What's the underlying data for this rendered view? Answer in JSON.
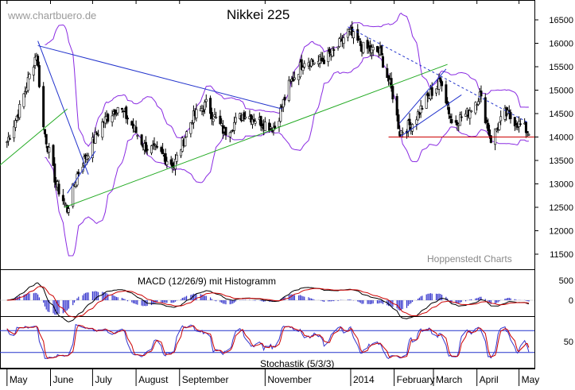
{
  "watermark": "www.chartbuero.de",
  "source_label": "Hoppenstedt Charts",
  "chart_data": [
    {
      "type": "candlestick",
      "title": "Nikkei 225",
      "ylim": [
        11300,
        16750
      ],
      "y_ticks": [
        11500,
        12000,
        12500,
        13000,
        13500,
        14000,
        14500,
        15000,
        15500,
        16000,
        16500
      ],
      "x_ticks": [
        "May",
        "June",
        "July",
        "August",
        "September",
        "November",
        "2014",
        "February",
        "March",
        "April",
        "May"
      ],
      "grid": false,
      "close_points": [
        {
          "date": "2013-05-01",
          "value": 13900
        },
        {
          "date": "2013-05-10",
          "value": 14600
        },
        {
          "date": "2013-05-22",
          "value": 15800
        },
        {
          "date": "2013-05-27",
          "value": 14200
        },
        {
          "date": "2013-06-05",
          "value": 13000
        },
        {
          "date": "2013-06-13",
          "value": 12450
        },
        {
          "date": "2013-06-20",
          "value": 13200
        },
        {
          "date": "2013-06-28",
          "value": 13700
        },
        {
          "date": "2013-07-08",
          "value": 14300
        },
        {
          "date": "2013-07-19",
          "value": 14650
        },
        {
          "date": "2013-07-26",
          "value": 14400
        },
        {
          "date": "2013-08-07",
          "value": 13800
        },
        {
          "date": "2013-08-16",
          "value": 13700
        },
        {
          "date": "2013-08-28",
          "value": 13400
        },
        {
          "date": "2013-09-10",
          "value": 14400
        },
        {
          "date": "2013-09-20",
          "value": 14700
        },
        {
          "date": "2013-10-03",
          "value": 14100
        },
        {
          "date": "2013-10-17",
          "value": 14500
        },
        {
          "date": "2013-10-31",
          "value": 14300
        },
        {
          "date": "2013-11-08",
          "value": 14200
        },
        {
          "date": "2013-11-18",
          "value": 15100
        },
        {
          "date": "2013-11-29",
          "value": 15650
        },
        {
          "date": "2013-12-10",
          "value": 15600
        },
        {
          "date": "2013-12-20",
          "value": 15800
        },
        {
          "date": "2013-12-30",
          "value": 16250
        },
        {
          "date": "2014-01-10",
          "value": 15900
        },
        {
          "date": "2014-01-22",
          "value": 15800
        },
        {
          "date": "2014-01-31",
          "value": 14900
        },
        {
          "date": "2014-02-05",
          "value": 14100
        },
        {
          "date": "2014-02-14",
          "value": 14300
        },
        {
          "date": "2014-02-26",
          "value": 14900
        },
        {
          "date": "2014-03-07",
          "value": 15200
        },
        {
          "date": "2014-03-14",
          "value": 14300
        },
        {
          "date": "2014-03-25",
          "value": 14500
        },
        {
          "date": "2014-04-03",
          "value": 14900
        },
        {
          "date": "2014-04-11",
          "value": 13950
        },
        {
          "date": "2014-04-21",
          "value": 14500
        },
        {
          "date": "2014-04-30",
          "value": 14300
        },
        {
          "date": "2014-05-08",
          "value": 14100
        }
      ],
      "horizontal_support": {
        "value": 14000,
        "color": "#cc0000"
      }
    },
    {
      "type": "line",
      "title": "MACD (12/26/9) mit Histogramm",
      "y_ticks": [
        0,
        500
      ],
      "series_colors": {
        "macd": "#000000",
        "signal": "#cc0000",
        "histogram": "#3333cc"
      }
    },
    {
      "type": "line",
      "title": "Stochastik (5/3/3)",
      "y_ticks": [
        50
      ],
      "levels": [
        20,
        80
      ],
      "series_colors": {
        "k": "#3333cc",
        "d": "#cc0000"
      }
    }
  ]
}
